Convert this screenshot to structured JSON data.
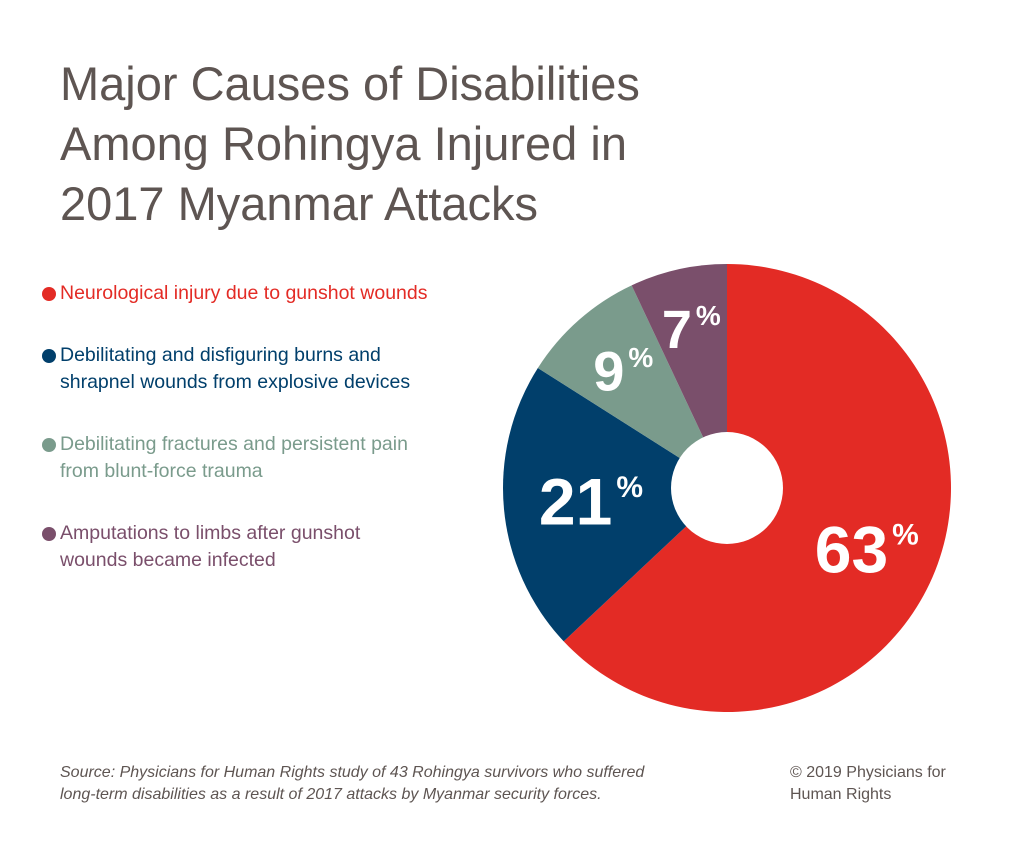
{
  "chart_data": {
    "type": "pie",
    "title": "Major Causes of Disabilities\nAmong Rohingya Injured in\n2017 Myanmar Attacks",
    "slices": [
      {
        "label": "Neurological injury due to gunshot wounds",
        "value": 63,
        "value_label": "63",
        "color": "#e32b25"
      },
      {
        "label": "Debilitating and disfiguring burns and\nshrapnel wounds from explosive devices",
        "value": 21,
        "value_label": "21",
        "color": "#013f6b"
      },
      {
        "label": "Debilitating fractures and persistent pain\nfrom blunt-force trauma",
        "value": 9,
        "value_label": "9",
        "color": "#7a9b8c"
      },
      {
        "label": "Amputations to limbs after gunshot\nwounds became infected",
        "value": 7,
        "value_label": "7",
        "color": "#7a4f6b"
      }
    ],
    "percent_sign": "%",
    "donut": true,
    "legend_position": "left"
  },
  "footer": {
    "source": "Source: Physicians for Human Rights study of 43 Rohingya survivors who suffered\nlong-term disabilities as a result of 2017 attacks by Myanmar security forces.",
    "copyright": "© 2019 Physicians for\nHuman Rights"
  }
}
